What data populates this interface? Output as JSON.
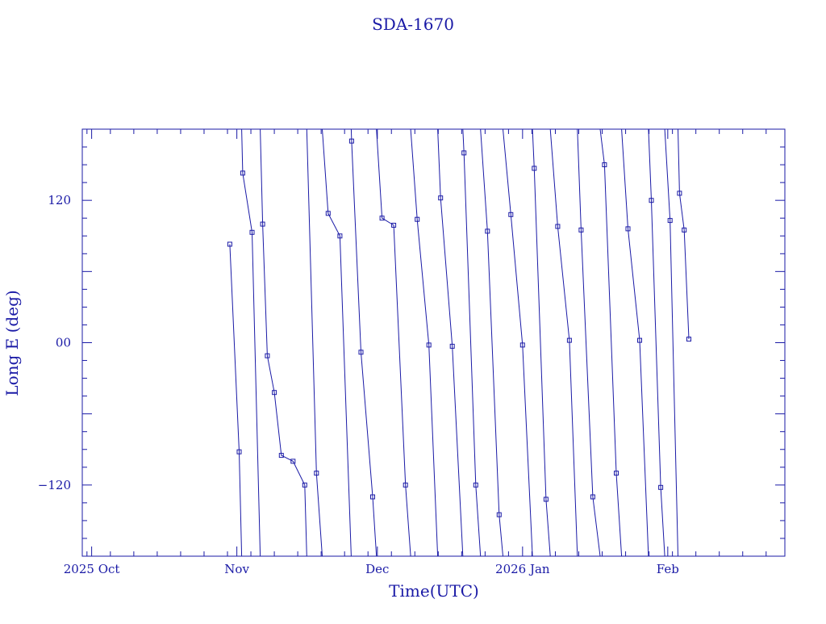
{
  "chart_data": {
    "type": "line",
    "title": "SDA-1670",
    "xlabel": "Time(UTC)",
    "ylabel": "Long E (deg)",
    "color": "#1a1aa6",
    "x_range": [
      "2025-09-29",
      "2026-02-26"
    ],
    "ylim": [
      -180,
      180
    ],
    "x_tick_labels": [
      {
        "date": "2025-10-01",
        "label": "2025 Oct"
      },
      {
        "date": "2025-11-01",
        "label": "Nov"
      },
      {
        "date": "2025-12-01",
        "label": "Dec"
      },
      {
        "date": "2026-01-01",
        "label": "2026 Jan"
      },
      {
        "date": "2026-02-01",
        "label": "Feb"
      }
    ],
    "y_tick_labels": [
      {
        "value": 120,
        "label": "120"
      },
      {
        "value": 0,
        "label": "00"
      },
      {
        "value": -120,
        "label": "−120"
      }
    ],
    "marker": "square",
    "series": [
      {
        "values": [
          [
            "2025-10-30T12:00",
            83
          ],
          [
            "2025-11-01T12:00",
            -92
          ],
          [
            "2025-11-02T06:00",
            143
          ],
          [
            "2025-11-04T06:00",
            93
          ],
          [
            "2025-11-06T12:00",
            100
          ],
          [
            "2025-11-07T12:00",
            -11
          ],
          [
            "2025-11-09T00:00",
            -42
          ],
          [
            "2025-11-10T12:00",
            -95
          ],
          [
            "2025-11-13T00:00",
            -100
          ],
          [
            "2025-11-15T12:00",
            -120
          ],
          [
            "2025-11-18T00:00",
            -110
          ],
          [
            "2025-11-20T12:00",
            109
          ],
          [
            "2025-11-23T00:00",
            90
          ],
          [
            "2025-11-25T12:00",
            170
          ],
          [
            "2025-11-27T12:00",
            -8
          ],
          [
            "2025-11-30T00:00",
            -130
          ],
          [
            "2025-12-02T00:00",
            105
          ],
          [
            "2025-12-04T12:00",
            99
          ],
          [
            "2025-12-07T00:00",
            -120
          ],
          [
            "2025-12-09T12:00",
            104
          ],
          [
            "2025-12-12T00:00",
            -2
          ],
          [
            "2025-12-14T12:00",
            122
          ],
          [
            "2025-12-17T00:00",
            -3
          ],
          [
            "2025-12-19T12:00",
            160
          ],
          [
            "2025-12-22T00:00",
            -120
          ],
          [
            "2025-12-24T12:00",
            94
          ],
          [
            "2025-12-27T00:00",
            -145
          ],
          [
            "2025-12-29T12:00",
            108
          ],
          [
            "2026-01-01T00:00",
            -2
          ],
          [
            "2026-01-03T12:00",
            147
          ],
          [
            "2026-01-06T00:00",
            -132
          ],
          [
            "2026-01-08T12:00",
            98
          ],
          [
            "2026-01-11T00:00",
            2
          ],
          [
            "2026-01-13T12:00",
            95
          ],
          [
            "2026-01-16T00:00",
            -130
          ],
          [
            "2026-01-18T12:00",
            150
          ],
          [
            "2026-01-21T00:00",
            -110
          ],
          [
            "2026-01-23T12:00",
            96
          ],
          [
            "2026-01-26T00:00",
            2
          ],
          [
            "2026-01-28T12:00",
            120
          ],
          [
            "2026-01-30T12:00",
            -122
          ],
          [
            "2026-02-01T12:00",
            103
          ],
          [
            "2026-02-03T12:00",
            126
          ],
          [
            "2026-02-04T12:00",
            95
          ],
          [
            "2026-02-05T12:00",
            3
          ]
        ]
      }
    ]
  }
}
